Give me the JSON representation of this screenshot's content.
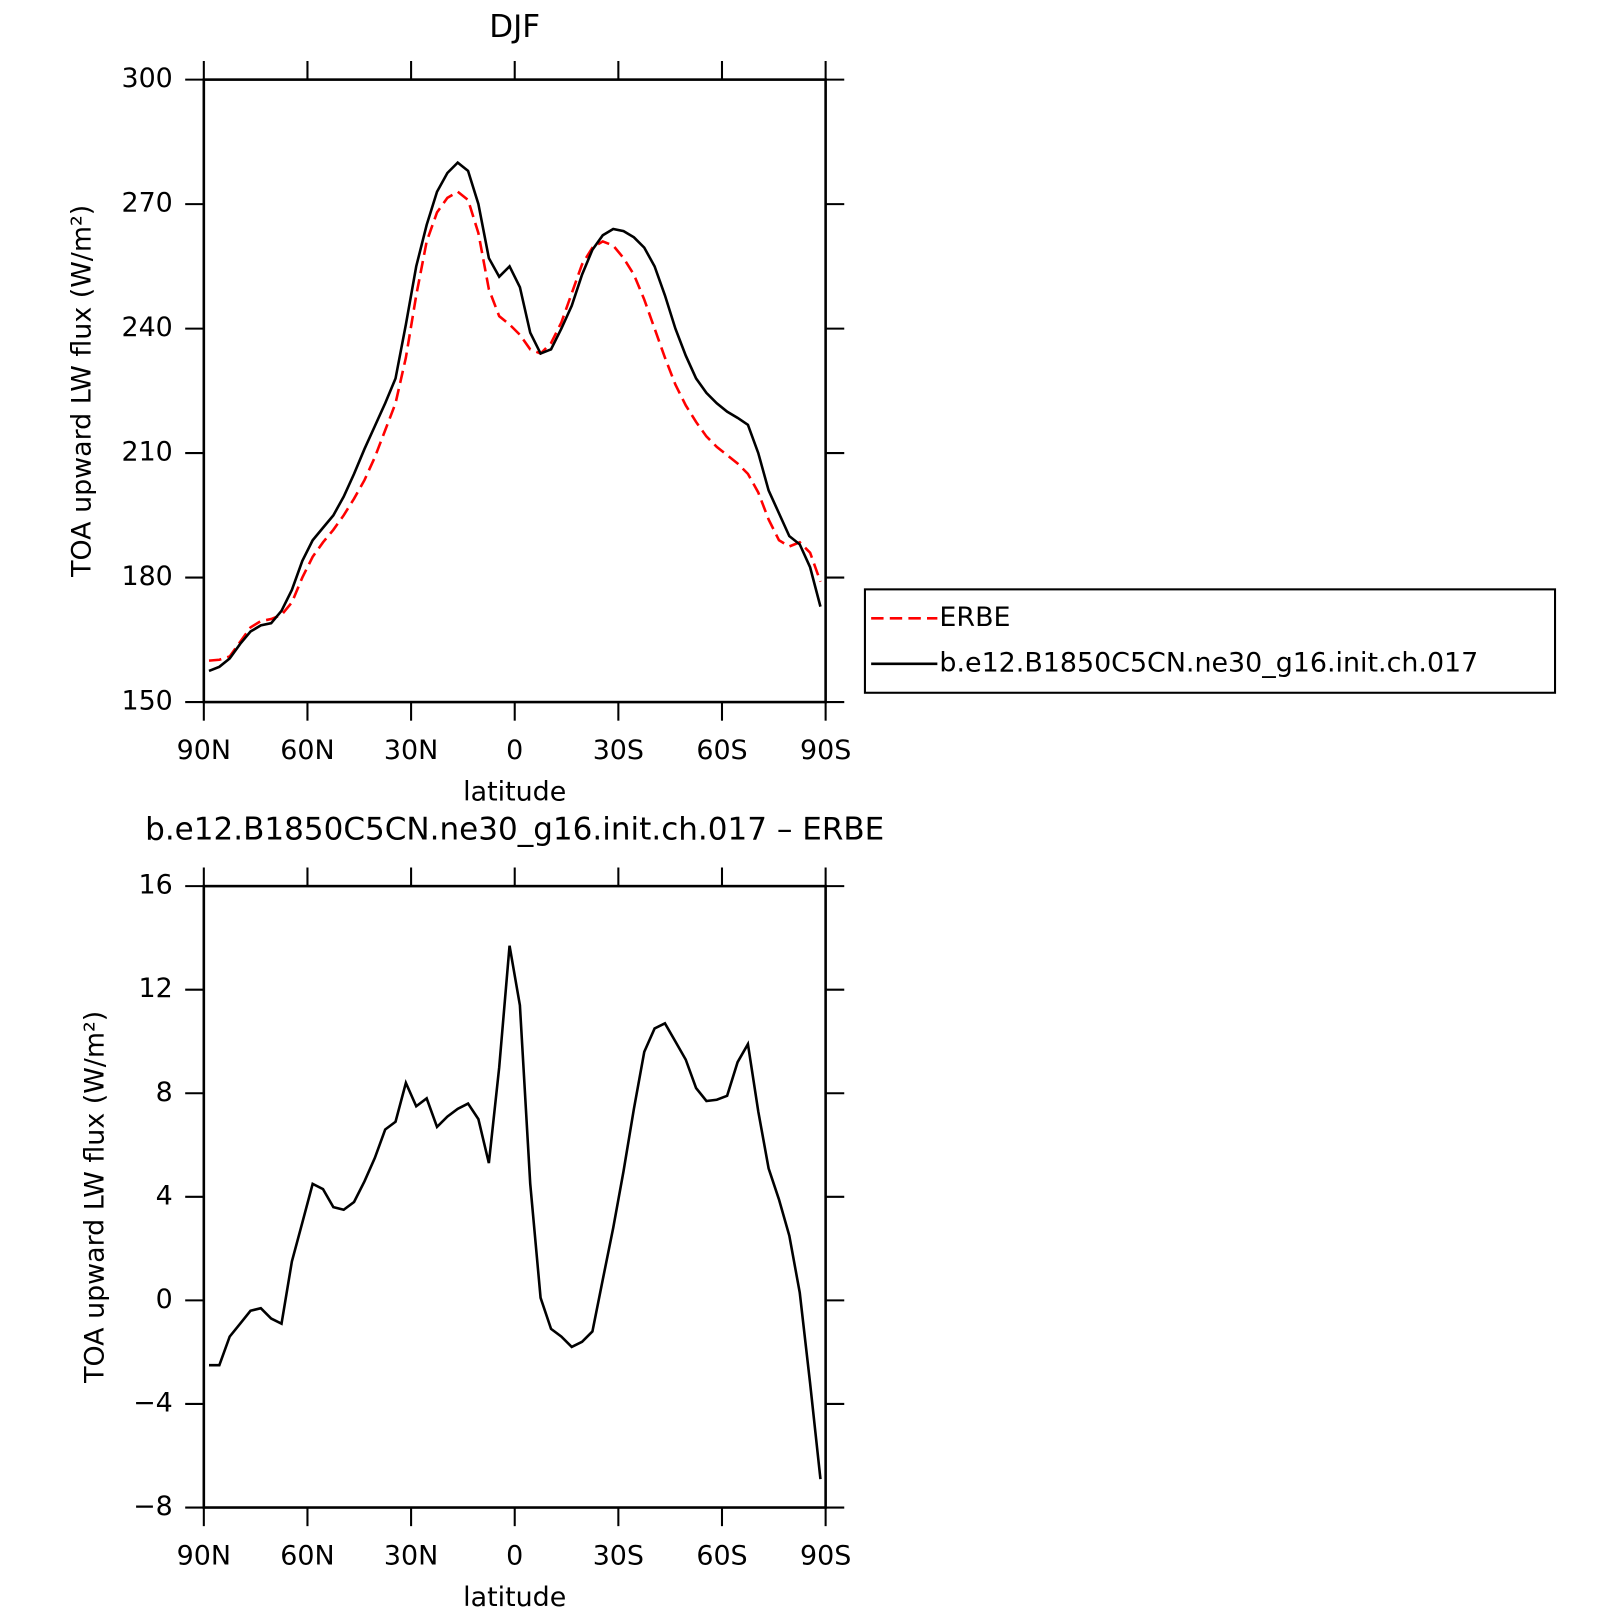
{
  "chart_data": [
    {
      "type": "line",
      "title": "DJF",
      "x_label": "latitude",
      "y_label": "TOA upward LW flux (W/m²)",
      "x": [
        88.5,
        85.5,
        82.5,
        79.5,
        76.5,
        73.5,
        70.5,
        67.5,
        64.5,
        61.5,
        58.5,
        55.5,
        52.5,
        49.5,
        46.5,
        43.5,
        40.5,
        37.5,
        34.5,
        31.5,
        28.5,
        25.5,
        22.5,
        19.5,
        16.5,
        13.5,
        10.5,
        7.5,
        4.5,
        1.5,
        -1.5,
        -4.5,
        -7.5,
        -10.5,
        -13.5,
        -16.5,
        -19.5,
        -22.5,
        -25.5,
        -28.5,
        -31.5,
        -34.5,
        -37.5,
        -40.5,
        -43.5,
        -46.5,
        -49.5,
        -52.5,
        -55.5,
        -58.5,
        -61.5,
        -64.5,
        -67.5,
        -70.5,
        -73.5,
        -76.5,
        -79.5,
        -82.5,
        -85.5,
        -88.5
      ],
      "series": [
        {
          "name": "ERBE",
          "color": "#ff0000",
          "dashed": true,
          "values": [
            160,
            160.2,
            161,
            164.5,
            168,
            169.5,
            170,
            171,
            174,
            180,
            185,
            188.5,
            191.5,
            195,
            199,
            203.5,
            209,
            215.5,
            222,
            233,
            248,
            261,
            268,
            271.5,
            273,
            271,
            263,
            249.5,
            243,
            241,
            238.5,
            235,
            234,
            236.5,
            241.5,
            248.5,
            255.5,
            259.5,
            261,
            260,
            257,
            253,
            247,
            240,
            233,
            226.5,
            221.5,
            217.5,
            214,
            211.5,
            209.5,
            207.5,
            205,
            200.5,
            194,
            189,
            187.5,
            188.5,
            186,
            179
          ]
        },
        {
          "name": "b.e12.B1850C5CN.ne30_g16.init.ch.017",
          "color": "#000000",
          "dashed": false,
          "values": [
            157.5,
            158.5,
            160.5,
            164,
            167,
            168.5,
            169,
            172,
            177,
            184,
            189,
            192,
            195,
            199.5,
            205,
            211,
            216.5,
            222,
            228,
            241,
            255,
            265,
            273,
            277.5,
            280,
            278,
            270,
            257,
            252.5,
            255,
            250,
            239,
            234,
            235,
            240,
            245.5,
            253,
            259,
            262.5,
            264,
            263.5,
            262,
            259.5,
            255,
            248,
            240,
            233.5,
            228,
            224.5,
            222,
            220,
            218.5,
            216.8,
            210,
            201,
            195.5,
            190,
            188,
            182.5,
            173
          ]
        }
      ],
      "xlim": [
        90,
        -90
      ],
      "xticks": [
        {
          "value": 90,
          "label": "90N"
        },
        {
          "value": 60,
          "label": "60N"
        },
        {
          "value": 30,
          "label": "30N"
        },
        0,
        {
          "value": -30,
          "label": "30S"
        },
        {
          "value": -60,
          "label": "60S"
        },
        {
          "value": -90,
          "label": "90S"
        }
      ],
      "ylim": [
        150,
        300
      ],
      "yticks": [
        150,
        180,
        210,
        240,
        270,
        300
      ],
      "legend": "right"
    },
    {
      "type": "line",
      "title": "b.e12.B1850C5CN.ne30_g16.init.ch.017 – ERBE",
      "x_label": "latitude",
      "y_label": "TOA upward LW flux (W/m²)",
      "x": [
        88.5,
        85.5,
        82.5,
        79.5,
        76.5,
        73.5,
        70.5,
        67.5,
        64.5,
        61.5,
        58.5,
        55.5,
        52.5,
        49.5,
        46.5,
        43.5,
        40.5,
        37.5,
        34.5,
        31.5,
        28.5,
        25.5,
        22.5,
        19.5,
        16.5,
        13.5,
        10.5,
        7.5,
        4.5,
        1.5,
        -1.5,
        -4.5,
        -7.5,
        -10.5,
        -13.5,
        -16.5,
        -19.5,
        -22.5,
        -25.5,
        -28.5,
        -31.5,
        -34.5,
        -37.5,
        -40.5,
        -43.5,
        -46.5,
        -49.5,
        -52.5,
        -55.5,
        -58.5,
        -61.5,
        -64.5,
        -67.5,
        -70.5,
        -73.5,
        -76.5,
        -79.5,
        -82.5,
        -85.5,
        -88.5
      ],
      "series": [
        {
          "color": "#000000",
          "dashed": false,
          "values": [
            -2.5,
            -2.5,
            -1.4,
            -0.9,
            -0.4,
            -0.3,
            -0.7,
            -0.9,
            1.5,
            3.0,
            4.5,
            4.3,
            3.6,
            3.5,
            3.8,
            4.6,
            5.5,
            6.6,
            6.9,
            8.4,
            7.5,
            7.8,
            6.7,
            7.1,
            7.4,
            7.6,
            7.0,
            5.3,
            9.0,
            13.7,
            11.4,
            4.5,
            0.1,
            -1.1,
            -1.4,
            -1.8,
            -1.6,
            -1.2,
            0.8,
            2.8,
            5,
            7.4,
            9.6,
            10.5,
            10.7,
            10,
            9.3,
            8.2,
            7.7,
            7.75,
            7.9,
            9.2,
            9.9,
            7.3,
            5.1,
            3.9,
            2.5,
            0.3,
            -3.2,
            -6.9
          ]
        }
      ],
      "xlim": [
        90,
        -90
      ],
      "xticks": [
        {
          "value": 90,
          "label": "90N"
        },
        {
          "value": 60,
          "label": "60N"
        },
        {
          "value": 30,
          "label": "30N"
        },
        0,
        {
          "value": -30,
          "label": "30S"
        },
        {
          "value": -60,
          "label": "60S"
        },
        {
          "value": -90,
          "label": "90S"
        }
      ],
      "ylim": [
        -8,
        16
      ],
      "yticks": [
        {
          "value": -8,
          "label": "−8"
        },
        {
          "value": -4,
          "label": "−4"
        },
        0,
        4,
        8,
        12,
        16
      ]
    }
  ]
}
